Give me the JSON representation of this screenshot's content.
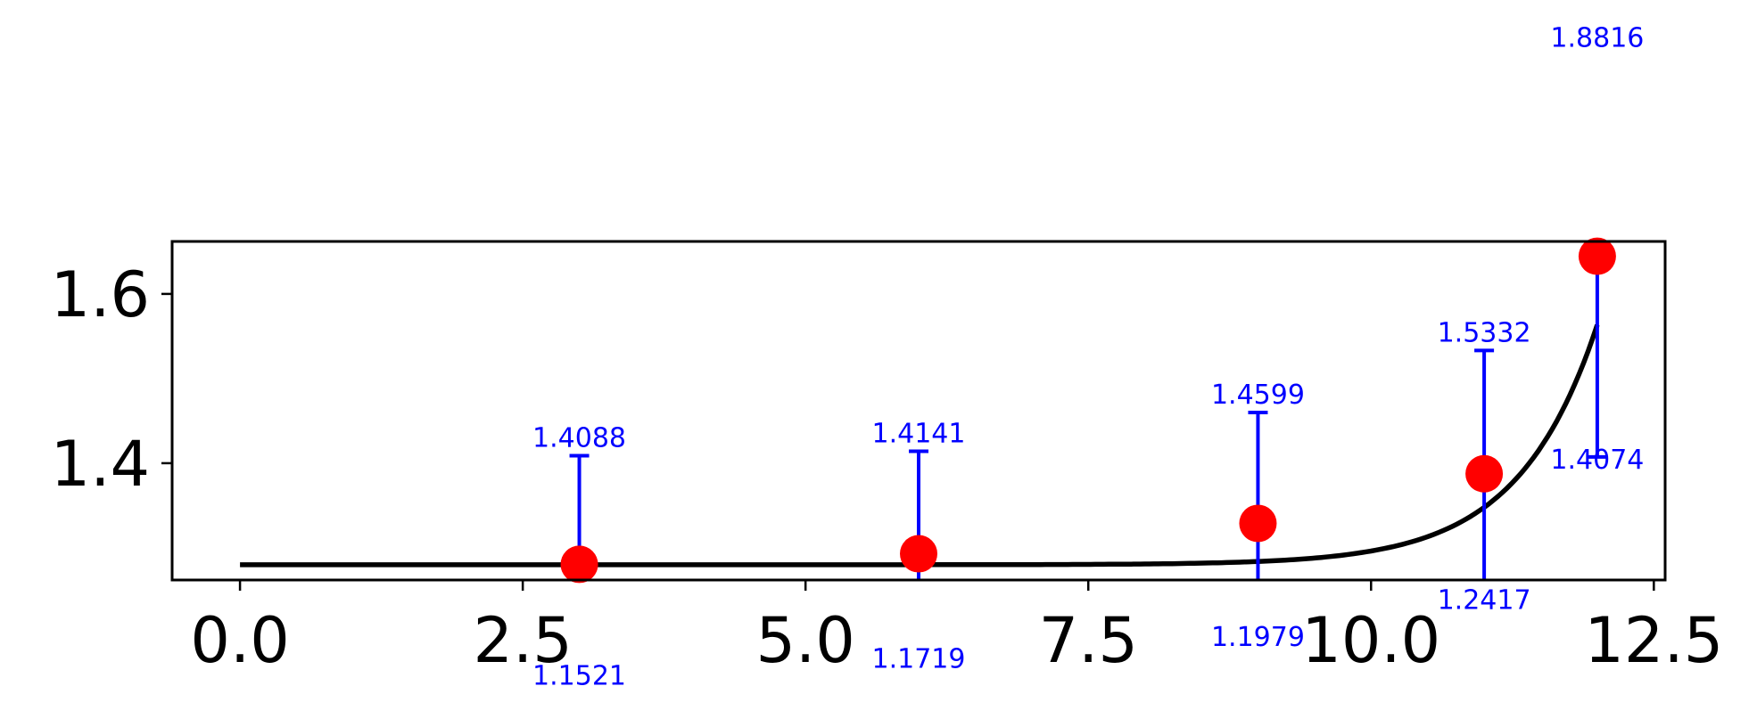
{
  "chart_data": {
    "type": "scatter",
    "title": "",
    "xlabel": "",
    "ylabel": "",
    "xlim": [
      -0.6,
      12.6
    ],
    "ylim": [
      1.262,
      1.662
    ],
    "grid": false,
    "x_ticks": [
      0.0,
      2.5,
      5.0,
      7.5,
      10.0,
      12.5
    ],
    "x_tick_labels": [
      "0.0",
      "2.5",
      "5.0",
      "7.5",
      "10.0",
      "12.5"
    ],
    "y_ticks": [
      1.4,
      1.6
    ],
    "y_tick_labels": [
      "1.4",
      "1.6"
    ],
    "points": [
      {
        "x": 3,
        "y": 1.2805,
        "upper": 1.4088,
        "lower": 1.1521,
        "upper_label": "1.4088",
        "lower_label": "1.1521"
      },
      {
        "x": 6,
        "y": 1.293,
        "upper": 1.4141,
        "lower": 1.1719,
        "upper_label": "1.4141",
        "lower_label": "1.1719"
      },
      {
        "x": 9,
        "y": 1.3289,
        "upper": 1.4599,
        "lower": 1.1979,
        "upper_label": "1.4599",
        "lower_label": "1.1979"
      },
      {
        "x": 11,
        "y": 1.3875,
        "upper": 1.5332,
        "lower": 1.2417,
        "upper_label": "1.5332",
        "lower_label": "1.2417"
      },
      {
        "x": 12,
        "y": 1.6445,
        "upper": 1.8816,
        "lower": 1.4074,
        "upper_label": "1.8816",
        "lower_label": "1.4074"
      }
    ],
    "fit_curve": {
      "type": "exponential",
      "a": 1.28,
      "b": 1e-08,
      "c": 1.43
    },
    "colors": {
      "points": "#ff0000",
      "error_bars": "#0000ff",
      "error_labels": "#0000ff",
      "curve": "#000000"
    }
  }
}
